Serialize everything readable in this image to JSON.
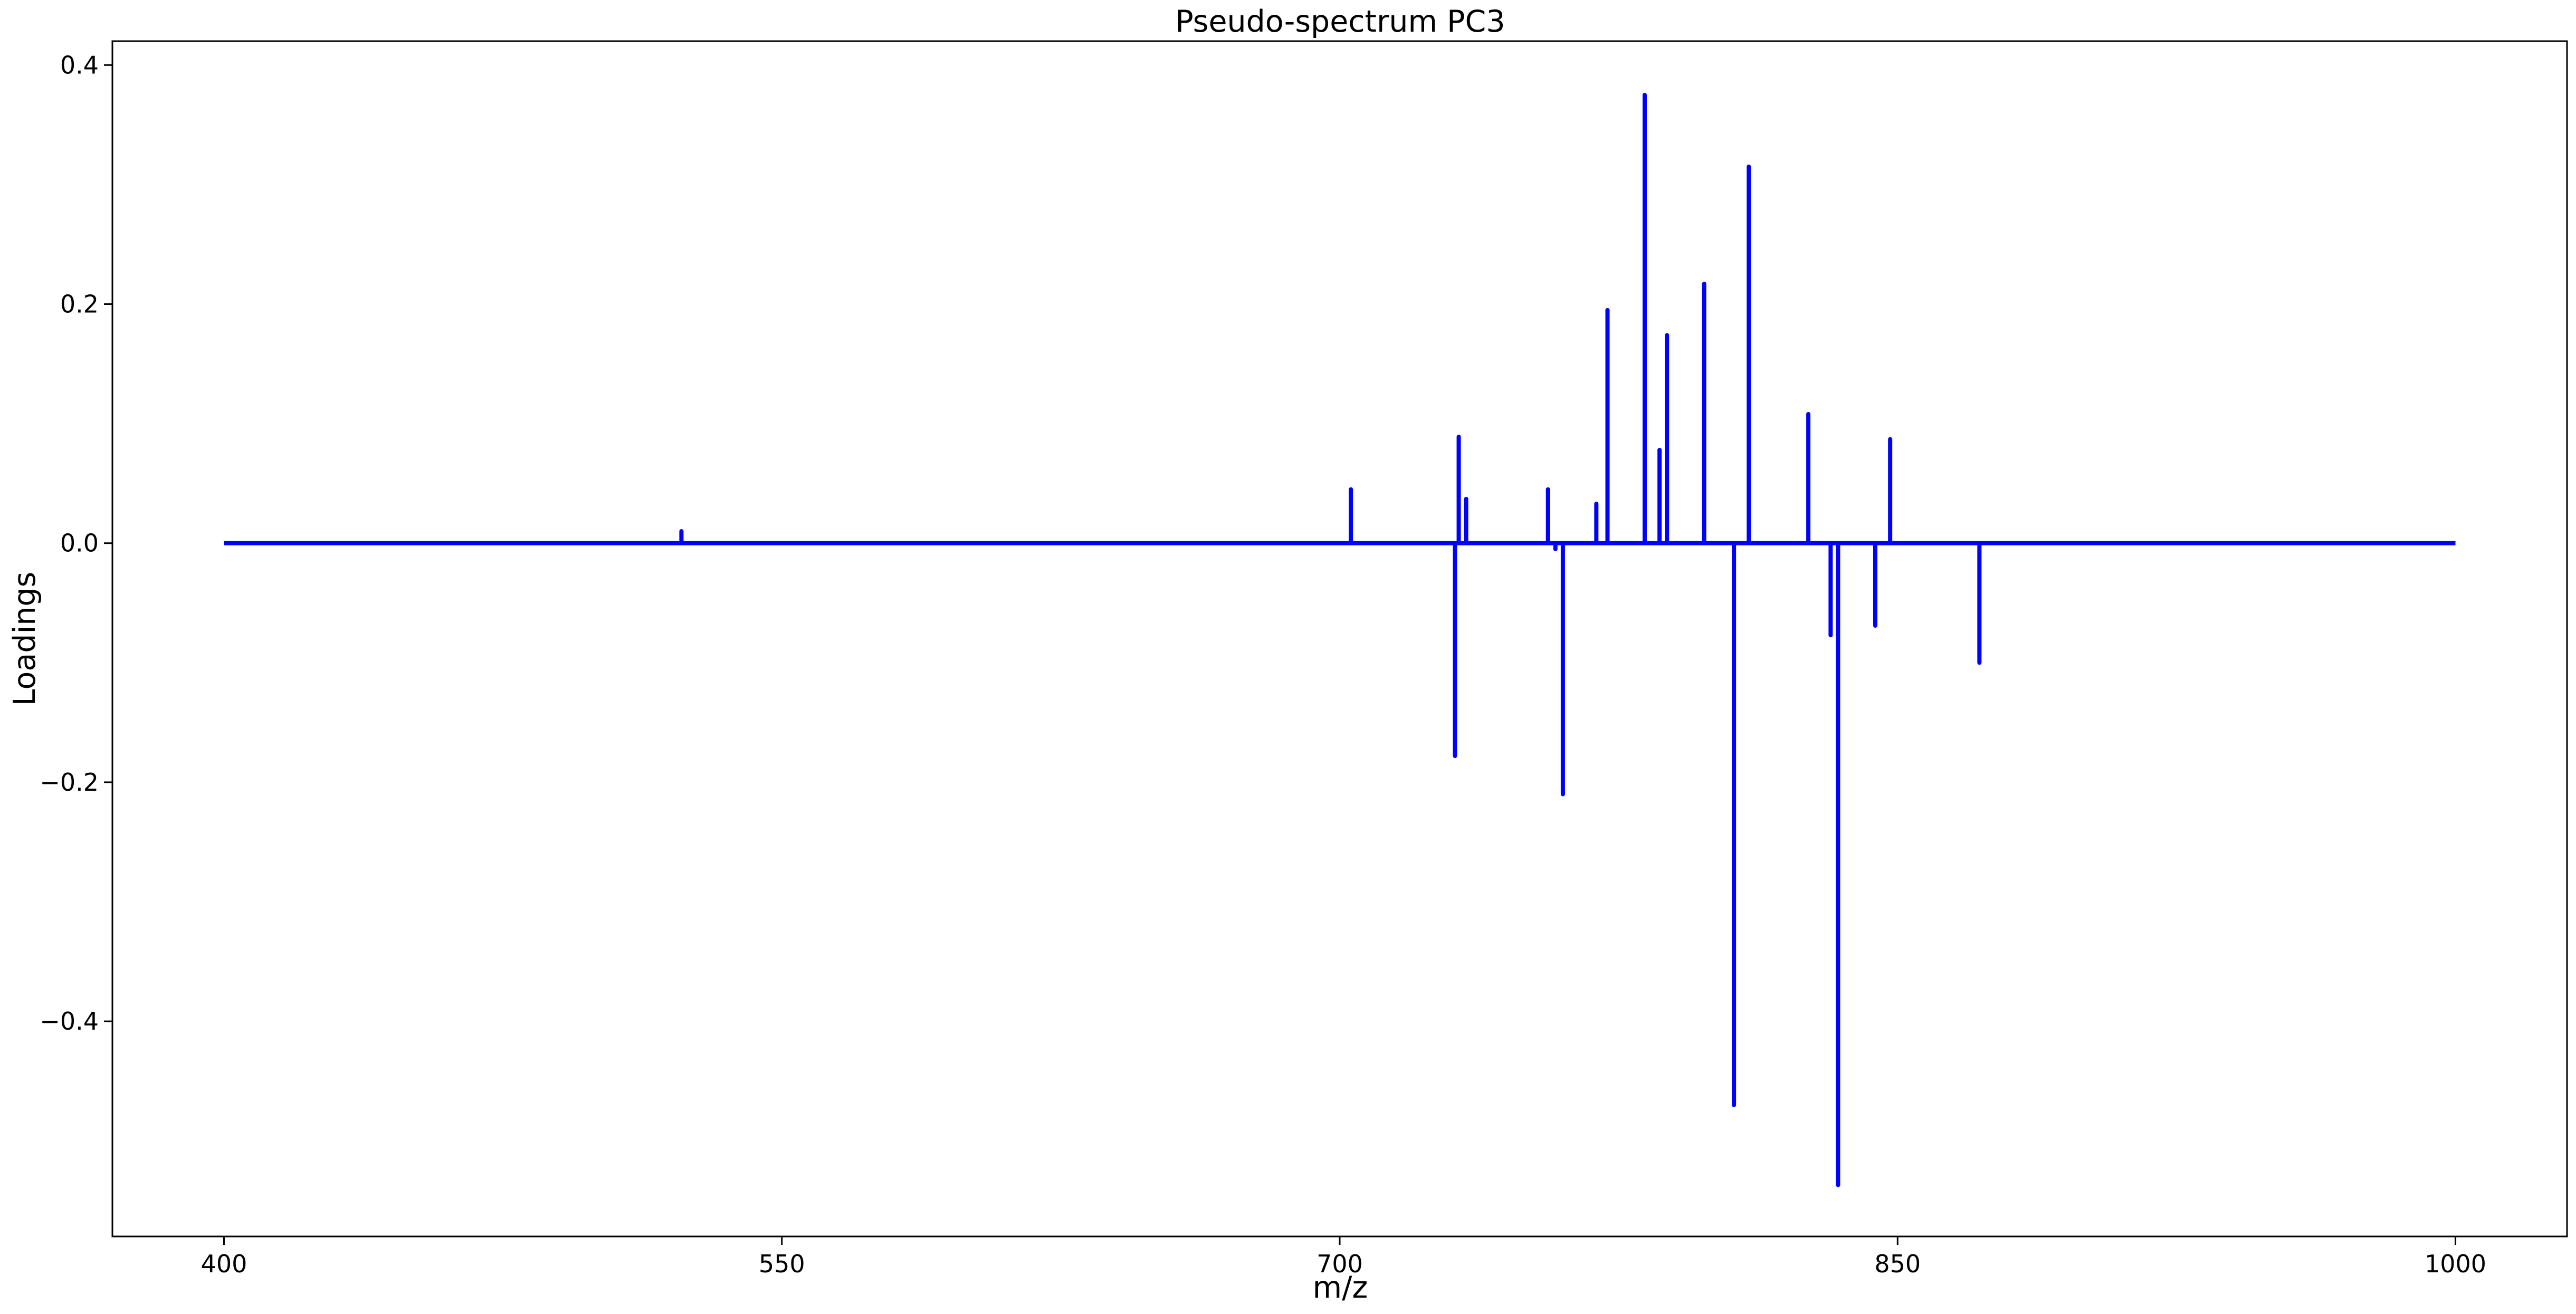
{
  "chart_data": {
    "type": "line",
    "title": "Pseudo-spectrum PC3",
    "xlabel": "m/z",
    "ylabel": "Loadings",
    "xlim": [
      370,
      1030
    ],
    "ylim": [
      -0.58,
      0.42
    ],
    "xticks": [
      400,
      550,
      700,
      850,
      1000
    ],
    "xtick_labels": [
      "400",
      "550",
      "700",
      "850",
      "1000"
    ],
    "yticks": [
      0.4,
      0.2,
      0.0,
      -0.2,
      -0.4
    ],
    "ytick_labels": [
      "0.4",
      "0.2",
      "0.0",
      "−0.2",
      "−0.4"
    ],
    "grid": false,
    "legend": "none",
    "series": [
      {
        "color": "#0000ff",
        "x_range": [
          400,
          1000
        ],
        "baseline": 0,
        "peaks": [
          {
            "x": 523,
            "y": 0.01
          },
          {
            "x": 703,
            "y": 0.045
          },
          {
            "x": 731,
            "y": -0.178
          },
          {
            "x": 732,
            "y": 0.089
          },
          {
            "x": 734,
            "y": 0.037
          },
          {
            "x": 756,
            "y": 0.045
          },
          {
            "x": 758,
            "y": -0.005
          },
          {
            "x": 760,
            "y": -0.21
          },
          {
            "x": 769,
            "y": 0.033
          },
          {
            "x": 772,
            "y": 0.195
          },
          {
            "x": 782,
            "y": 0.375
          },
          {
            "x": 786,
            "y": 0.078
          },
          {
            "x": 788,
            "y": 0.174
          },
          {
            "x": 798,
            "y": 0.217
          },
          {
            "x": 806,
            "y": -0.47
          },
          {
            "x": 810,
            "y": 0.315
          },
          {
            "x": 826,
            "y": 0.108
          },
          {
            "x": 832,
            "y": -0.077
          },
          {
            "x": 834,
            "y": -0.537
          },
          {
            "x": 844,
            "y": -0.069
          },
          {
            "x": 848,
            "y": 0.087
          },
          {
            "x": 872,
            "y": -0.1
          }
        ]
      }
    ]
  }
}
